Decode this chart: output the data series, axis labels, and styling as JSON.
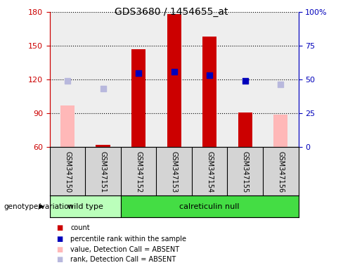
{
  "title": "GDS3680 / 1454655_at",
  "samples": [
    "GSM347150",
    "GSM347151",
    "GSM347152",
    "GSM347153",
    "GSM347154",
    "GSM347155",
    "GSM347156"
  ],
  "ylim_left": [
    60,
    180
  ],
  "ylim_right": [
    0,
    100
  ],
  "yticks_left": [
    60,
    90,
    120,
    150,
    180
  ],
  "yticks_right": [
    0,
    25,
    50,
    75,
    100
  ],
  "yticklabels_right": [
    "0",
    "25",
    "50",
    "75",
    "100%"
  ],
  "count_values": [
    null,
    62,
    147,
    178,
    158,
    91,
    null
  ],
  "percentile_rank_left": [
    null,
    null,
    126,
    127,
    124,
    119,
    null
  ],
  "absent_value": [
    97,
    null,
    null,
    null,
    null,
    null,
    89
  ],
  "absent_rank_left": [
    119,
    112,
    null,
    null,
    null,
    null,
    116
  ],
  "bar_color": "#cc0000",
  "dot_color": "#0000bb",
  "absent_bar_color": "#ffb8b8",
  "absent_dot_color": "#b8b8dd",
  "background_plot": "#eeeeee",
  "wt_color": "#bbffbb",
  "cn_color": "#44dd44",
  "left_tick_color": "#cc0000",
  "right_tick_color": "#0000bb",
  "bar_width": 0.4
}
